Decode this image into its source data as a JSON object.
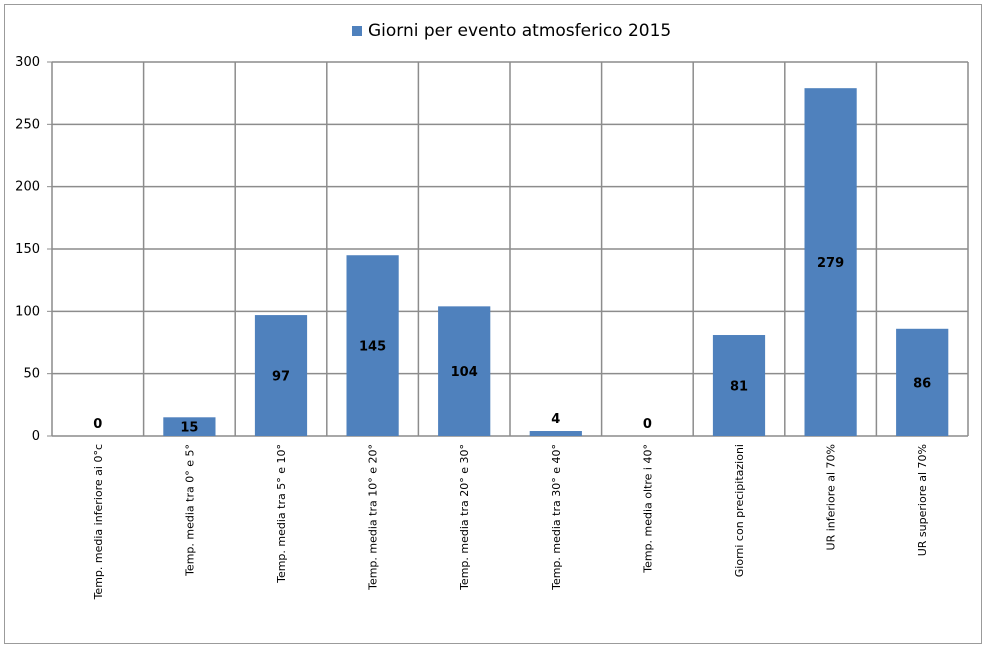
{
  "chart_data": {
    "type": "bar",
    "title": "",
    "xlabel": "",
    "ylabel": "",
    "ylim": [
      0,
      300
    ],
    "yticks": [
      0,
      50,
      100,
      150,
      200,
      250,
      300
    ],
    "grid": true,
    "legend_position": "top",
    "series": [
      {
        "name": "Giorni per evento atmosferico 2015",
        "color": "#4f81bd",
        "values": [
          0,
          15,
          97,
          145,
          104,
          4,
          0,
          81,
          279,
          86
        ]
      }
    ],
    "categories": [
      "Temp. media inferiore ai 0°c",
      "Temp. media tra 0° e 5°",
      "Temp. media tra 5° e 10°",
      "Temp. media tra 10° e 20°",
      "Temp. media tra 20° e 30°",
      "Temp. media tra 30° e 40°",
      "Temp. media oltre i 40°",
      "Giorni con precipitazioni",
      "UR inferiore al 70%",
      "UR superiore al 70%"
    ]
  }
}
